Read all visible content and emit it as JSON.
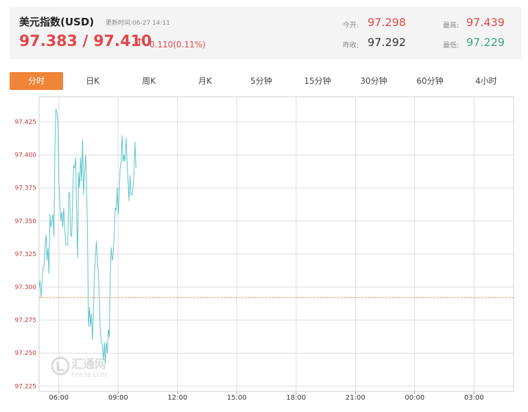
{
  "header": {
    "title": "美元指数(USD)",
    "update_label": "更新时间:",
    "update_time": "06-27 14:11",
    "price": "97.383 / 97.410",
    "arrow": "↑",
    "change": "0.110(0.11%)",
    "open_label": "今开:",
    "open_value": "97.298",
    "prev_label": "昨收:",
    "prev_value": "97.292",
    "high_label": "最高:",
    "high_value": "97.439",
    "low_label": "最低:",
    "low_value": "97.229"
  },
  "tabs": [
    "分时",
    "日K",
    "周K",
    "月K",
    "5分钟",
    "15分钟",
    "30分钟",
    "60分钟",
    "4小时"
  ],
  "active_tab": 0,
  "watermark": {
    "name": "汇通网",
    "site": "FX678.COM"
  },
  "colors": {
    "line": "#5ac3cc",
    "baseline": "#f08437",
    "grid": "#dcdcdc",
    "accent": "#f08437",
    "up": "#e0474c",
    "down": "#3aa57d"
  },
  "chart_data": {
    "type": "line",
    "title": "",
    "xlabel": "",
    "ylabel": "",
    "x_ticks": [
      "06:00",
      "09:00",
      "12:00",
      "15:00",
      "18:00",
      "21:00",
      "00:00",
      "03:00"
    ],
    "y_ticks": [
      97.225,
      97.25,
      97.275,
      97.3,
      97.325,
      97.35,
      97.375,
      97.4,
      97.425
    ],
    "ylim": [
      97.221,
      97.444
    ],
    "x_range_minutes": [
      300,
      1740
    ],
    "reference_line": {
      "name": "昨收",
      "value": 97.292
    },
    "series": [
      {
        "points": [
          [
            300,
            97.3
          ],
          [
            303,
            97.305
          ],
          [
            306,
            97.292
          ],
          [
            309,
            97.305
          ],
          [
            312,
            97.315
          ],
          [
            315,
            97.315
          ],
          [
            318,
            97.33
          ],
          [
            321,
            97.34
          ],
          [
            324,
            97.32
          ],
          [
            327,
            97.33
          ],
          [
            330,
            97.31
          ],
          [
            333,
            97.355
          ],
          [
            336,
            97.345
          ],
          [
            339,
            97.35
          ],
          [
            342,
            97.355
          ],
          [
            345,
            97.338
          ],
          [
            348,
            97.405
          ],
          [
            351,
            97.435
          ],
          [
            354,
            97.432
          ],
          [
            357,
            97.425
          ],
          [
            360,
            97.38
          ],
          [
            363,
            97.365
          ],
          [
            366,
            97.35
          ],
          [
            369,
            97.357
          ],
          [
            372,
            97.345
          ],
          [
            375,
            97.36
          ],
          [
            378,
            97.345
          ],
          [
            381,
            97.332
          ],
          [
            384,
            97.332
          ],
          [
            387,
            97.332
          ],
          [
            390,
            97.372
          ],
          [
            393,
            97.37
          ],
          [
            396,
            97.34
          ],
          [
            399,
            97.338
          ],
          [
            402,
            97.37
          ],
          [
            405,
            97.392
          ],
          [
            408,
            97.39
          ],
          [
            411,
            97.398
          ],
          [
            414,
            97.355
          ],
          [
            417,
            97.322
          ],
          [
            420,
            97.387
          ],
          [
            423,
            97.375
          ],
          [
            426,
            97.398
          ],
          [
            429,
            97.38
          ],
          [
            432,
            97.412
          ],
          [
            435,
            97.37
          ],
          [
            438,
            97.385
          ],
          [
            441,
            97.4
          ],
          [
            444,
            97.38
          ],
          [
            447,
            97.34
          ],
          [
            450,
            97.27
          ],
          [
            453,
            97.285
          ],
          [
            456,
            97.27
          ],
          [
            459,
            97.28
          ],
          [
            462,
            97.26
          ],
          [
            465,
            97.28
          ],
          [
            468,
            97.31
          ],
          [
            471,
            97.322
          ],
          [
            474,
            97.335
          ],
          [
            477,
            97.32
          ],
          [
            480,
            97.31
          ],
          [
            483,
            97.29
          ],
          [
            486,
            97.265
          ],
          [
            489,
            97.26
          ],
          [
            492,
            97.255
          ],
          [
            495,
            97.245
          ],
          [
            498,
            97.258
          ],
          [
            501,
            97.243
          ],
          [
            504,
            97.258
          ],
          [
            507,
            97.25
          ],
          [
            510,
            97.268
          ],
          [
            513,
            97.262
          ],
          [
            516,
            97.31
          ],
          [
            519,
            97.33
          ],
          [
            522,
            97.32
          ],
          [
            525,
            97.325
          ],
          [
            528,
            97.34
          ],
          [
            531,
            97.36
          ],
          [
            534,
            97.358
          ],
          [
            537,
            97.375
          ],
          [
            540,
            97.355
          ],
          [
            543,
            97.37
          ],
          [
            546,
            97.39
          ],
          [
            549,
            97.395
          ],
          [
            552,
            97.415
          ],
          [
            555,
            97.395
          ],
          [
            558,
            97.4
          ],
          [
            561,
            97.395
          ],
          [
            564,
            97.413
          ],
          [
            567,
            97.395
          ],
          [
            570,
            97.38
          ],
          [
            573,
            97.365
          ],
          [
            576,
            97.385
          ],
          [
            579,
            97.37
          ],
          [
            582,
            97.37
          ],
          [
            585,
            97.375
          ],
          [
            588,
            97.385
          ],
          [
            591,
            97.41
          ],
          [
            594,
            97.39
          ]
        ]
      }
    ]
  }
}
